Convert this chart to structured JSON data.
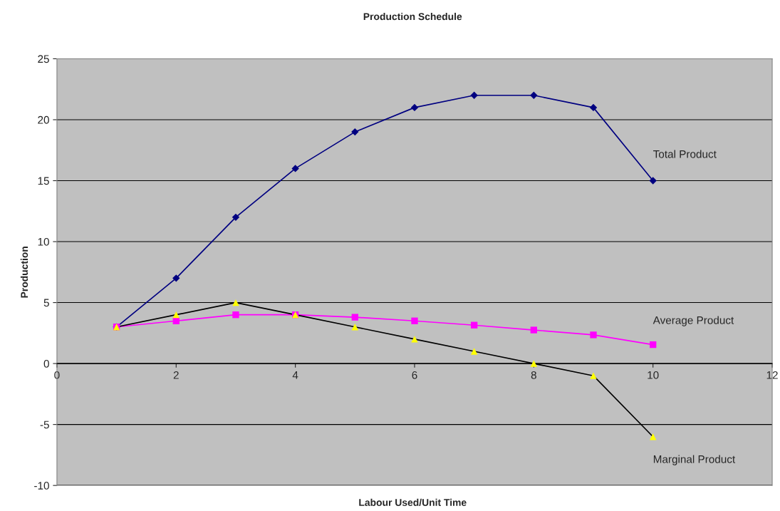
{
  "chart_data": {
    "type": "line",
    "title": "Production Schedule",
    "xlabel": "Labour Used/Unit Time",
    "ylabel": "Production",
    "x": [
      1,
      2,
      3,
      4,
      5,
      6,
      7,
      8,
      9,
      10
    ],
    "series": [
      {
        "name": "Total Product",
        "color": "#000080",
        "marker": "diamond",
        "values": [
          3,
          7,
          12,
          16,
          19,
          21,
          22,
          22,
          21,
          15
        ]
      },
      {
        "name": "Average Product",
        "color": "#ff00ff",
        "marker": "square",
        "values": [
          3,
          3.5,
          4,
          4,
          3.8,
          3.5,
          3.15,
          2.75,
          2.35,
          1.55
        ]
      },
      {
        "name": "Marginal Product",
        "color": "#000000",
        "colors": [
          "#ffff00",
          "#ffff00",
          "#ffff00",
          "#ffff00",
          "#ffff00",
          "#ffff00",
          "#ffff00",
          "#ffff00",
          "#ffff00",
          "#ffff00"
        ],
        "marker": "triangle",
        "values": [
          3,
          4,
          5,
          4,
          3,
          2,
          1,
          0,
          -1,
          -6
        ]
      }
    ],
    "xlim": [
      0,
      12
    ],
    "xticks": [
      0,
      2,
      4,
      6,
      8,
      10,
      12
    ],
    "ylim": [
      -10,
      25
    ],
    "yticks": [
      -10,
      -5,
      0,
      5,
      10,
      15,
      20,
      25
    ],
    "grid": "y",
    "legend": false
  }
}
